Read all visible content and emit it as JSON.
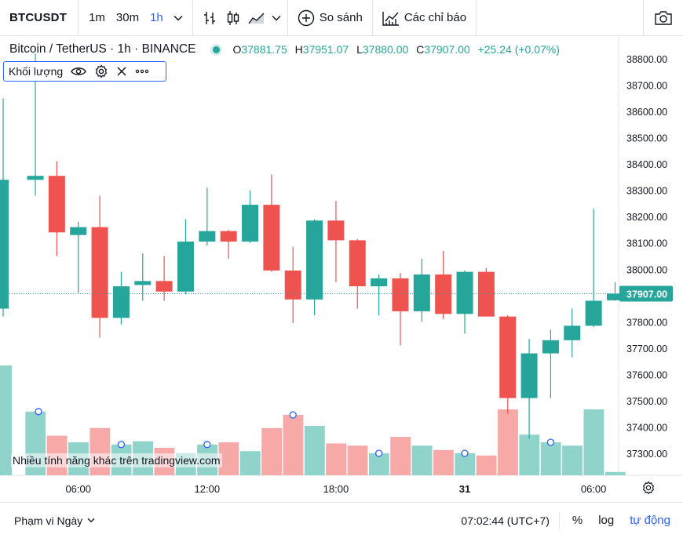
{
  "toolbar": {
    "symbol": "BTCUSDT",
    "intervals": [
      "1m",
      "30m",
      "1h"
    ],
    "active_interval": "1h",
    "compare_label": "So sánh",
    "indicators_label": "Các chỉ báo"
  },
  "legend": {
    "title": "Bitcoin / TetherUS · 1h · BINANCE",
    "o_label": "O",
    "o": "37881.75",
    "h_label": "H",
    "h": "37951.07",
    "l_label": "L",
    "l": "37880.00",
    "c_label": "C",
    "c": "37907.00",
    "change": "+25.24 (+0.07%)"
  },
  "volume_pane": {
    "label": "Khối lượng"
  },
  "watermark": "Nhiều tính năng khác trên tradingview.com",
  "bottom": {
    "range_label": "Phạm vi Ngày",
    "clock": "07:02:44 (UTC+7)",
    "percent": "%",
    "log": "log",
    "auto": "tự động"
  },
  "colors": {
    "up": "#26a69a",
    "down": "#ef5350",
    "accent": "#2962ff"
  },
  "chart_data": {
    "type": "candlestick",
    "ylim": [
      37230,
      38870
    ],
    "y_ticks": [
      38800,
      38700,
      38600,
      38500,
      38400,
      38300,
      38200,
      38100,
      38000,
      37900,
      37800,
      37700,
      37600,
      37500,
      37400,
      37300
    ],
    "y_tick_labels": [
      "38800.00",
      "38700.00",
      "38600.00",
      "38500.00",
      "38400.00",
      "38300.00",
      "38200.00",
      "38100.00",
      "38000.00",
      "37900.00",
      "37800.00",
      "37700.00",
      "37600.00",
      "37500.00",
      "37400.00",
      "37300.00"
    ],
    "last_price_label": "37907.00",
    "last_price": 37907,
    "x_labels": [
      {
        "label": "06:00",
        "index": 3
      },
      {
        "label": "12:00",
        "index": 9
      },
      {
        "label": "18:00",
        "index": 15
      },
      {
        "label": "31",
        "index": 21
      },
      {
        "label": "06:00",
        "index": 27
      }
    ],
    "candles": [
      {
        "o": 37850,
        "h": 38650,
        "l": 37820,
        "c": 38340
      },
      {
        "o": 38340,
        "h": 38820,
        "l": 38280,
        "c": 38355
      },
      {
        "o": 38355,
        "h": 38410,
        "l": 38050,
        "c": 38140
      },
      {
        "o": 38130,
        "h": 38180,
        "l": 37910,
        "c": 38160
      },
      {
        "o": 38160,
        "h": 38280,
        "l": 37740,
        "c": 37815
      },
      {
        "o": 37815,
        "h": 37990,
        "l": 37790,
        "c": 37935
      },
      {
        "o": 37940,
        "h": 38060,
        "l": 37880,
        "c": 37955
      },
      {
        "o": 37955,
        "h": 38050,
        "l": 37880,
        "c": 37915
      },
      {
        "o": 37915,
        "h": 38190,
        "l": 37905,
        "c": 38105
      },
      {
        "o": 38105,
        "h": 38310,
        "l": 38090,
        "c": 38145
      },
      {
        "o": 38145,
        "h": 38150,
        "l": 38040,
        "c": 38105
      },
      {
        "o": 38105,
        "h": 38300,
        "l": 38100,
        "c": 38245
      },
      {
        "o": 38245,
        "h": 38360,
        "l": 37990,
        "c": 37995
      },
      {
        "o": 37995,
        "h": 38085,
        "l": 37795,
        "c": 37885
      },
      {
        "o": 37885,
        "h": 38190,
        "l": 37825,
        "c": 38185
      },
      {
        "o": 38185,
        "h": 38260,
        "l": 37950,
        "c": 38110
      },
      {
        "o": 38110,
        "h": 38115,
        "l": 37850,
        "c": 37935
      },
      {
        "o": 37935,
        "h": 37980,
        "l": 37825,
        "c": 37965
      },
      {
        "o": 37965,
        "h": 37985,
        "l": 37710,
        "c": 37840
      },
      {
        "o": 37840,
        "h": 38040,
        "l": 37800,
        "c": 37980
      },
      {
        "o": 37980,
        "h": 38070,
        "l": 37810,
        "c": 37830
      },
      {
        "o": 37830,
        "h": 37995,
        "l": 37755,
        "c": 37990
      },
      {
        "o": 37990,
        "h": 38005,
        "l": 37820,
        "c": 37820
      },
      {
        "o": 37820,
        "h": 37825,
        "l": 37450,
        "c": 37510
      },
      {
        "o": 37510,
        "h": 37735,
        "l": 37355,
        "c": 37680
      },
      {
        "o": 37680,
        "h": 37770,
        "l": 37510,
        "c": 37730
      },
      {
        "o": 37730,
        "h": 37850,
        "l": 37665,
        "c": 37785
      },
      {
        "o": 37785,
        "h": 38230,
        "l": 37780,
        "c": 37880
      },
      {
        "o": 37881.75,
        "h": 37951.07,
        "l": 37880,
        "c": 37907
      }
    ],
    "volume": [
      1.0,
      0.58,
      0.36,
      0.3,
      0.43,
      0.28,
      0.31,
      0.25,
      0.2,
      0.28,
      0.3,
      0.22,
      0.43,
      0.55,
      0.45,
      0.29,
      0.27,
      0.2,
      0.35,
      0.27,
      0.23,
      0.2,
      0.18,
      0.6,
      0.37,
      0.3,
      0.27,
      0.6,
      0.03
    ]
  }
}
